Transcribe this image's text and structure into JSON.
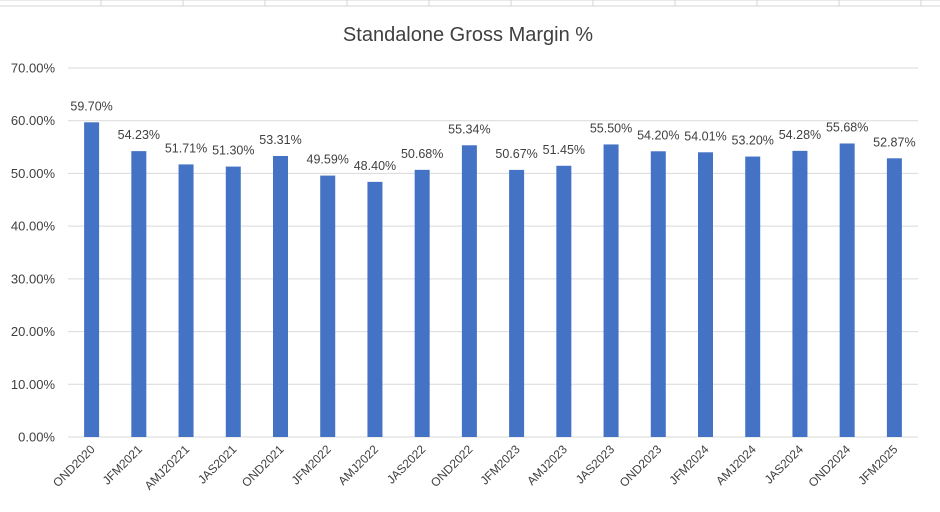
{
  "chart_data": {
    "type": "bar",
    "title": "Standalone Gross Margin %",
    "xlabel": "",
    "ylabel": "",
    "categories": [
      "OND2020",
      "JFM2021",
      "AMJ20221",
      "JAS2021",
      "OND2021",
      "JFM2022",
      "AMJ2022",
      "JAS2022",
      "OND2022",
      "JFM2023",
      "AMJ2023",
      "JAS2023",
      "OND2023",
      "JFM2024",
      "AMJ2024",
      "JAS2024",
      "OND2024",
      "JFM2025"
    ],
    "values": [
      59.7,
      54.23,
      51.71,
      51.3,
      53.31,
      49.59,
      48.4,
      50.68,
      55.34,
      50.67,
      51.45,
      55.5,
      54.2,
      54.01,
      53.2,
      54.28,
      55.68,
      52.87
    ],
    "data_labels": [
      "59.70%",
      "54.23%",
      "51.71%",
      "51.30%",
      "53.31%",
      "49.59%",
      "48.40%",
      "50.68%",
      "55.34%",
      "50.67%",
      "51.45%",
      "55.50%",
      "54.20%",
      "54.01%",
      "53.20%",
      "54.28%",
      "55.68%",
      "52.87%"
    ],
    "ylim": [
      0,
      70
    ],
    "yticks": [
      "0.00%",
      "10.00%",
      "20.00%",
      "30.00%",
      "40.00%",
      "50.00%",
      "60.00%",
      "70.00%"
    ],
    "grid": true,
    "bar_color": "#4472C4",
    "grid_color": "#D9D9D9"
  }
}
